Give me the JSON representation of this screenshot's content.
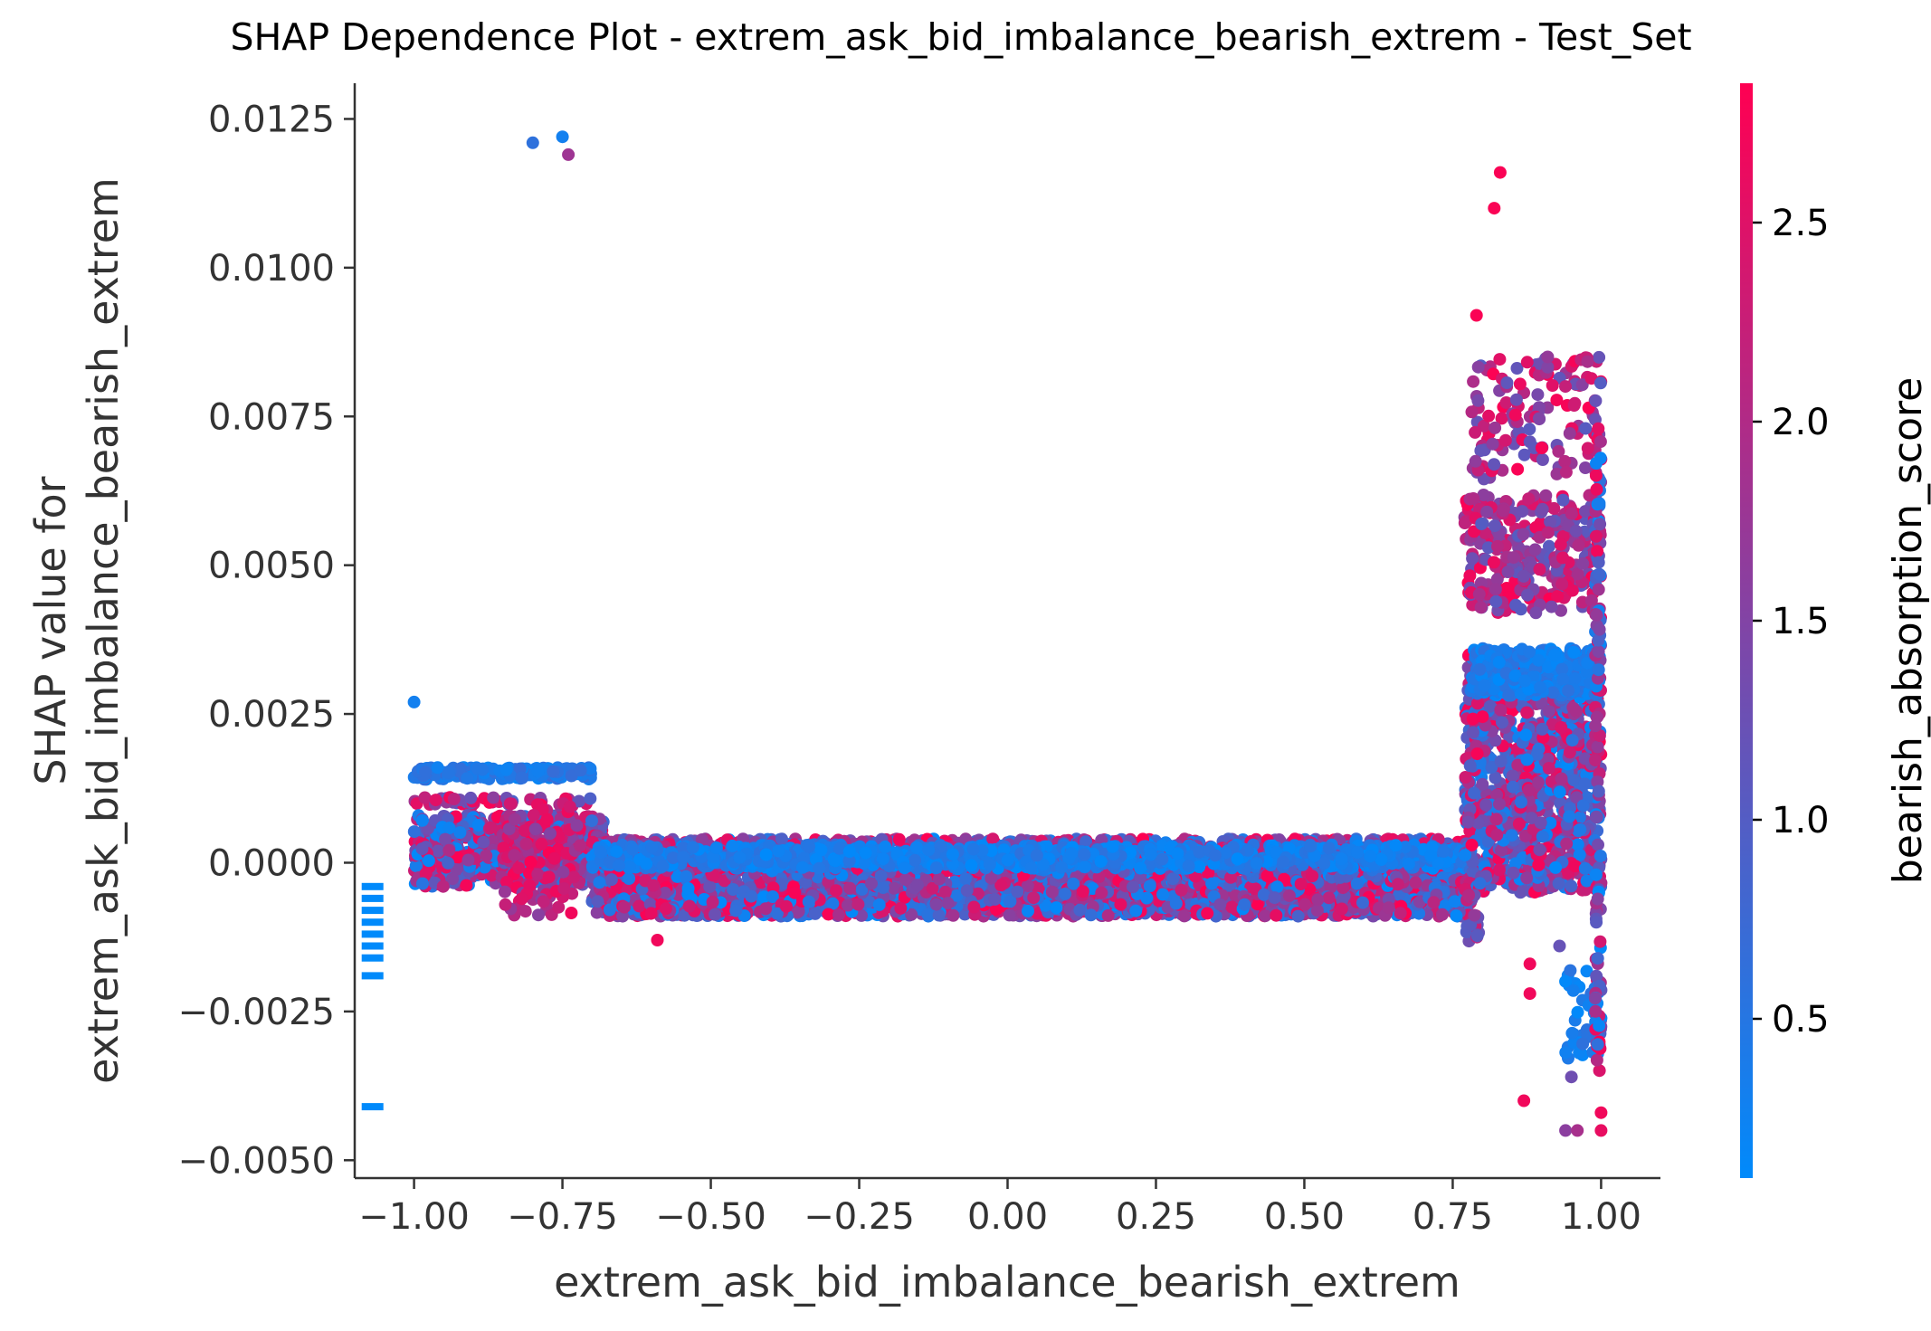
{
  "chart_data": {
    "type": "scatter",
    "title": "SHAP Dependence Plot - extrem_ask_bid_imbalance_bearish_extrem - Test_Set",
    "xlabel": "extrem_ask_bid_imbalance_bearish_extrem",
    "ylabel_line1": "SHAP value for",
    "ylabel_line2": "extrem_ask_bid_imbalance_bearish_extrem",
    "xlim": [
      -1.1,
      1.1
    ],
    "ylim": [
      -0.0053,
      0.0131
    ],
    "x_ticks": [
      {
        "value": -1.0,
        "label": "−1.00"
      },
      {
        "value": -0.75,
        "label": "−0.75"
      },
      {
        "value": -0.5,
        "label": "−0.50"
      },
      {
        "value": -0.25,
        "label": "−0.25"
      },
      {
        "value": 0.0,
        "label": "0.00"
      },
      {
        "value": 0.25,
        "label": "0.25"
      },
      {
        "value": 0.5,
        "label": "0.50"
      },
      {
        "value": 0.75,
        "label": "0.75"
      },
      {
        "value": 1.0,
        "label": "1.00"
      }
    ],
    "y_ticks": [
      {
        "value": 0.0125,
        "label": "0.0125"
      },
      {
        "value": 0.01,
        "label": "0.0100"
      },
      {
        "value": 0.0075,
        "label": "0.0075"
      },
      {
        "value": 0.005,
        "label": "0.0050"
      },
      {
        "value": 0.0025,
        "label": "0.0025"
      },
      {
        "value": 0.0,
        "label": "0.0000"
      },
      {
        "value": -0.0025,
        "label": "−0.0025"
      },
      {
        "value": -0.005,
        "label": "−0.0050"
      }
    ],
    "colorbar": {
      "label": "bearish_absorption_score",
      "range": [
        0.1,
        2.85
      ],
      "colors": [
        "#008afb",
        "#ff0052"
      ],
      "ticks": [
        {
          "value": 0.5,
          "label": "0.5"
        },
        {
          "value": 1.0,
          "label": "1.0"
        },
        {
          "value": 1.5,
          "label": "1.5"
        },
        {
          "value": 2.0,
          "label": "2.0"
        },
        {
          "value": 2.5,
          "label": "2.5"
        }
      ]
    },
    "missing_value_marks": {
      "x": -1.07,
      "y": [
        -0.0004,
        -0.0006,
        -0.0008,
        -0.001,
        -0.0012,
        -0.0014,
        -0.0016,
        -0.0019,
        -0.0041
      ]
    },
    "outlier_points": [
      {
        "x": -0.8,
        "y": 0.0121,
        "c": 0.6
      },
      {
        "x": -0.75,
        "y": 0.0122,
        "c": 0.3
      },
      {
        "x": -0.74,
        "y": 0.0119,
        "c": 1.8
      },
      {
        "x": -1.0,
        "y": 0.0027,
        "c": 0.3
      },
      {
        "x": -0.59,
        "y": -0.0013,
        "c": 2.7
      },
      {
        "x": 0.83,
        "y": 0.0116,
        "c": 2.8
      },
      {
        "x": 0.82,
        "y": 0.011,
        "c": 2.8
      },
      {
        "x": 0.79,
        "y": 0.0092,
        "c": 2.8
      },
      {
        "x": 0.88,
        "y": -0.0017,
        "c": 2.7
      },
      {
        "x": 0.88,
        "y": -0.0022,
        "c": 2.7
      },
      {
        "x": 0.87,
        "y": -0.004,
        "c": 2.7
      },
      {
        "x": 0.94,
        "y": -0.0045,
        "c": 1.6
      },
      {
        "x": 0.93,
        "y": -0.0014,
        "c": 1.2
      },
      {
        "x": 0.96,
        "y": -0.0045,
        "c": 1.9
      },
      {
        "x": 1.0,
        "y": -0.0045,
        "c": 2.6
      },
      {
        "x": 1.0,
        "y": -0.0042,
        "c": 2.7
      },
      {
        "x": 0.95,
        "y": -0.0036,
        "c": 1.3
      },
      {
        "x": 0.89,
        "y": 0.0042,
        "c": 1.4
      },
      {
        "x": 0.91,
        "y": 0.0085,
        "c": 1.7
      }
    ],
    "clusters": [
      {
        "x": [
          -1.0,
          -0.7
        ],
        "y": [
          0.0014,
          0.0016
        ],
        "n": 220,
        "c": [
          0.2,
          0.7
        ],
        "seed": 11
      },
      {
        "x": [
          -1.0,
          -0.7
        ],
        "y": [
          0.00095,
          0.0011
        ],
        "n": 50,
        "c": [
          0.9,
          2.8
        ],
        "seed": 12
      },
      {
        "x": [
          -1.0,
          -0.68
        ],
        "y": [
          -0.0004,
          0.0008
        ],
        "n": 700,
        "c": [
          0.1,
          2.85
        ],
        "seed": 13
      },
      {
        "x": [
          -0.85,
          -0.72
        ],
        "y": [
          -0.0009,
          0.001
        ],
        "n": 120,
        "c": [
          1.5,
          2.85
        ],
        "seed": 14
      },
      {
        "x": [
          -0.7,
          0.78
        ],
        "y": [
          -0.0009,
          0.0004
        ],
        "n": 4200,
        "c": [
          0.1,
          2.85
        ],
        "seed": 15
      },
      {
        "x": [
          -0.7,
          0.78
        ],
        "y": [
          -0.0001,
          0.0003
        ],
        "n": 900,
        "c": [
          0.1,
          0.6
        ],
        "seed": 16
      },
      {
        "x": [
          0.77,
          1.0
        ],
        "y": [
          -0.0005,
          0.0035
        ],
        "n": 1100,
        "c": [
          0.1,
          2.85
        ],
        "seed": 17
      },
      {
        "x": [
          0.78,
          1.0
        ],
        "y": [
          0.0028,
          0.0036
        ],
        "n": 300,
        "c": [
          0.1,
          0.6
        ],
        "seed": 18
      },
      {
        "x": [
          0.77,
          1.0
        ],
        "y": [
          0.0042,
          0.0062
        ],
        "n": 300,
        "c": [
          1.0,
          2.85
        ],
        "seed": 19
      },
      {
        "x": [
          0.78,
          1.0
        ],
        "y": [
          0.0064,
          0.0085
        ],
        "n": 140,
        "c": [
          1.0,
          2.85
        ],
        "seed": 20
      },
      {
        "x": [
          0.77,
          0.8
        ],
        "y": [
          -0.0015,
          -0.0005
        ],
        "n": 25,
        "c": [
          1.0,
          2.5
        ],
        "seed": 21
      },
      {
        "x": [
          0.94,
          1.0
        ],
        "y": [
          -0.0033,
          -0.0018
        ],
        "n": 45,
        "c": [
          0.1,
          0.6
        ],
        "seed": 22
      },
      {
        "x": [
          0.99,
          1.0
        ],
        "y": [
          -0.0035,
          0.0082
        ],
        "n": 140,
        "c": [
          0.1,
          2.85
        ],
        "seed": 23
      }
    ]
  }
}
